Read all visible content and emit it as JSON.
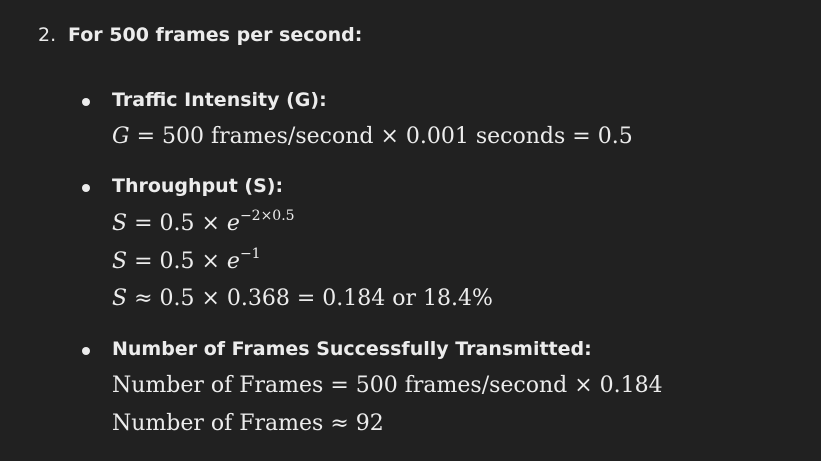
{
  "item": {
    "number": "2.",
    "heading": "For 500 frames per second:"
  },
  "bullets": [
    {
      "label": "Traffic Intensity (G):",
      "lines": [
        {
          "var": "G",
          "rest": " = 500 frames/second × 0.001 seconds = 0.5"
        }
      ]
    },
    {
      "label": "Throughput (S):",
      "lines": [
        {
          "var": "S",
          "rest": " = 0.5 × ",
          "e": "e",
          "sup": "−2×0.5"
        },
        {
          "var": "S",
          "rest": " = 0.5 × ",
          "e": "e",
          "sup": "−1"
        },
        {
          "var": "S",
          "rest": " ≈ 0.5 × 0.368 = 0.184 or 18.4%"
        }
      ]
    },
    {
      "label": "Number of Frames Successfully Transmitted:",
      "lines": [
        {
          "text": "Number of Frames = 500 frames/second × 0.184"
        },
        {
          "text": "Number of Frames ≈ 92"
        }
      ]
    }
  ]
}
